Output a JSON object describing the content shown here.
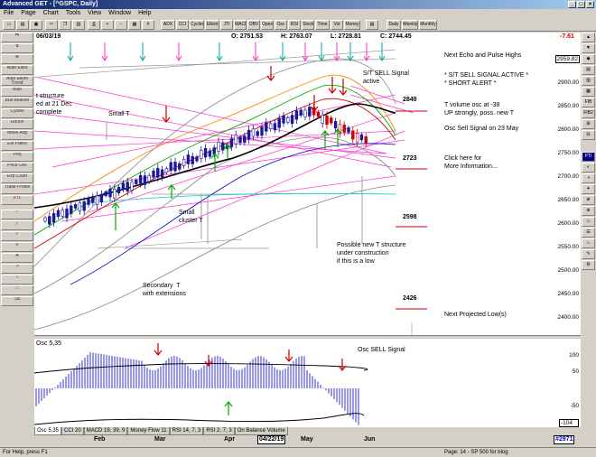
{
  "window": {
    "title": "Advanced GET - [^GSPC, Daily]"
  },
  "menu": [
    "File",
    "Page",
    "Chart",
    "Tools",
    "View",
    "Window",
    "Help"
  ],
  "toolbar": [
    "ADX SSD",
    "CCI",
    "Cycles",
    "Elliott Trig",
    "JTI",
    "MACD",
    "OBV",
    "Open Int",
    "Osc",
    "RSI",
    "Stock",
    "Time Cycl",
    "Vol",
    "Money Flow",
    "Daily",
    "Weekly",
    "Monthly"
  ],
  "leftbar": [
    "Auto Elliot",
    "Auto Elliott Trend",
    "Bias",
    "Bull Bearish",
    "Cycles",
    "Donch",
    "Move Avg",
    "Ext Paths",
    "Proj",
    "Price Osc",
    "Exp Chart",
    "Trade Profile",
    "XTL"
  ],
  "rightbar": [
    "",
    "",
    "",
    "",
    "",
    "",
    "FIB",
    "FIB2",
    "",
    "",
    "PTI",
    "",
    "",
    "",
    "",
    "",
    "",
    ""
  ],
  "header": {
    "date": "06/03/19",
    "open": "O: 2751.53",
    "high": "H: 2763.07",
    "low": "L: 2728.81",
    "close": "C: 2744.45",
    "change": "-7.61"
  },
  "colors": {
    "red": "#cc0000",
    "green": "#00aa00",
    "blue": "#0000cc",
    "pink": "#ff33cc",
    "cyan": "#00cccc"
  },
  "price_axis": [
    "2950.00",
    "2900.00",
    "2850.00",
    "2800.00",
    "2750.00",
    "2700.00",
    "2650.00",
    "2600.00",
    "2550.00",
    "2500.00",
    "2450.00",
    "2400.00"
  ],
  "price_axis_highlight": "2959.82",
  "levels": [
    "2849",
    "2723",
    "2598",
    "2426"
  ],
  "annotations": {
    "elliott_left": "t structure\ned at 21 Dec\ncomplete",
    "small_t": "Small T",
    "small_cluster": "Small\ncluster T",
    "secondary": "Secondary  T\nwith extensions",
    "possible_new": "Possible new T structure\nunder construction\nif this is a low",
    "st_sell": "S/T SELL Signal\nactive",
    "right_1": "Next Echo and Pulse Highs",
    "right_2": "* S/T SELL SIGNAL ACTIVE *\n* SHORT ALERT *",
    "right_3": "T volume osc at -38\nUP strongly, poss. new T",
    "right_4": "Osc Sell Signal on 23 May",
    "right_5": "Click here for\nMore Information...",
    "right_6": "Next Projected Low(s)",
    "osc_sell": "Osc SELL Signal"
  },
  "osc": {
    "label": "Osc 5,35",
    "axis": [
      "100",
      "50",
      "-50"
    ],
    "bottom_value": "-104"
  },
  "pane_tabs": [
    "Osc 5,35",
    "CCI 20",
    "MACD 19, 39, 9",
    "Money Flow 11",
    "RSI 14, 7, 3",
    "RSI 2, 7, 3",
    "On Balance Volume"
  ],
  "date_axis": [
    "Feb",
    "Mar",
    "Apr",
    "04/22/19",
    "May",
    "Jun"
  ],
  "date_axis_highlight": "#2971",
  "status": {
    "left": "For Help, press F1",
    "right": "Page: 14 - SP 500 for blog"
  }
}
